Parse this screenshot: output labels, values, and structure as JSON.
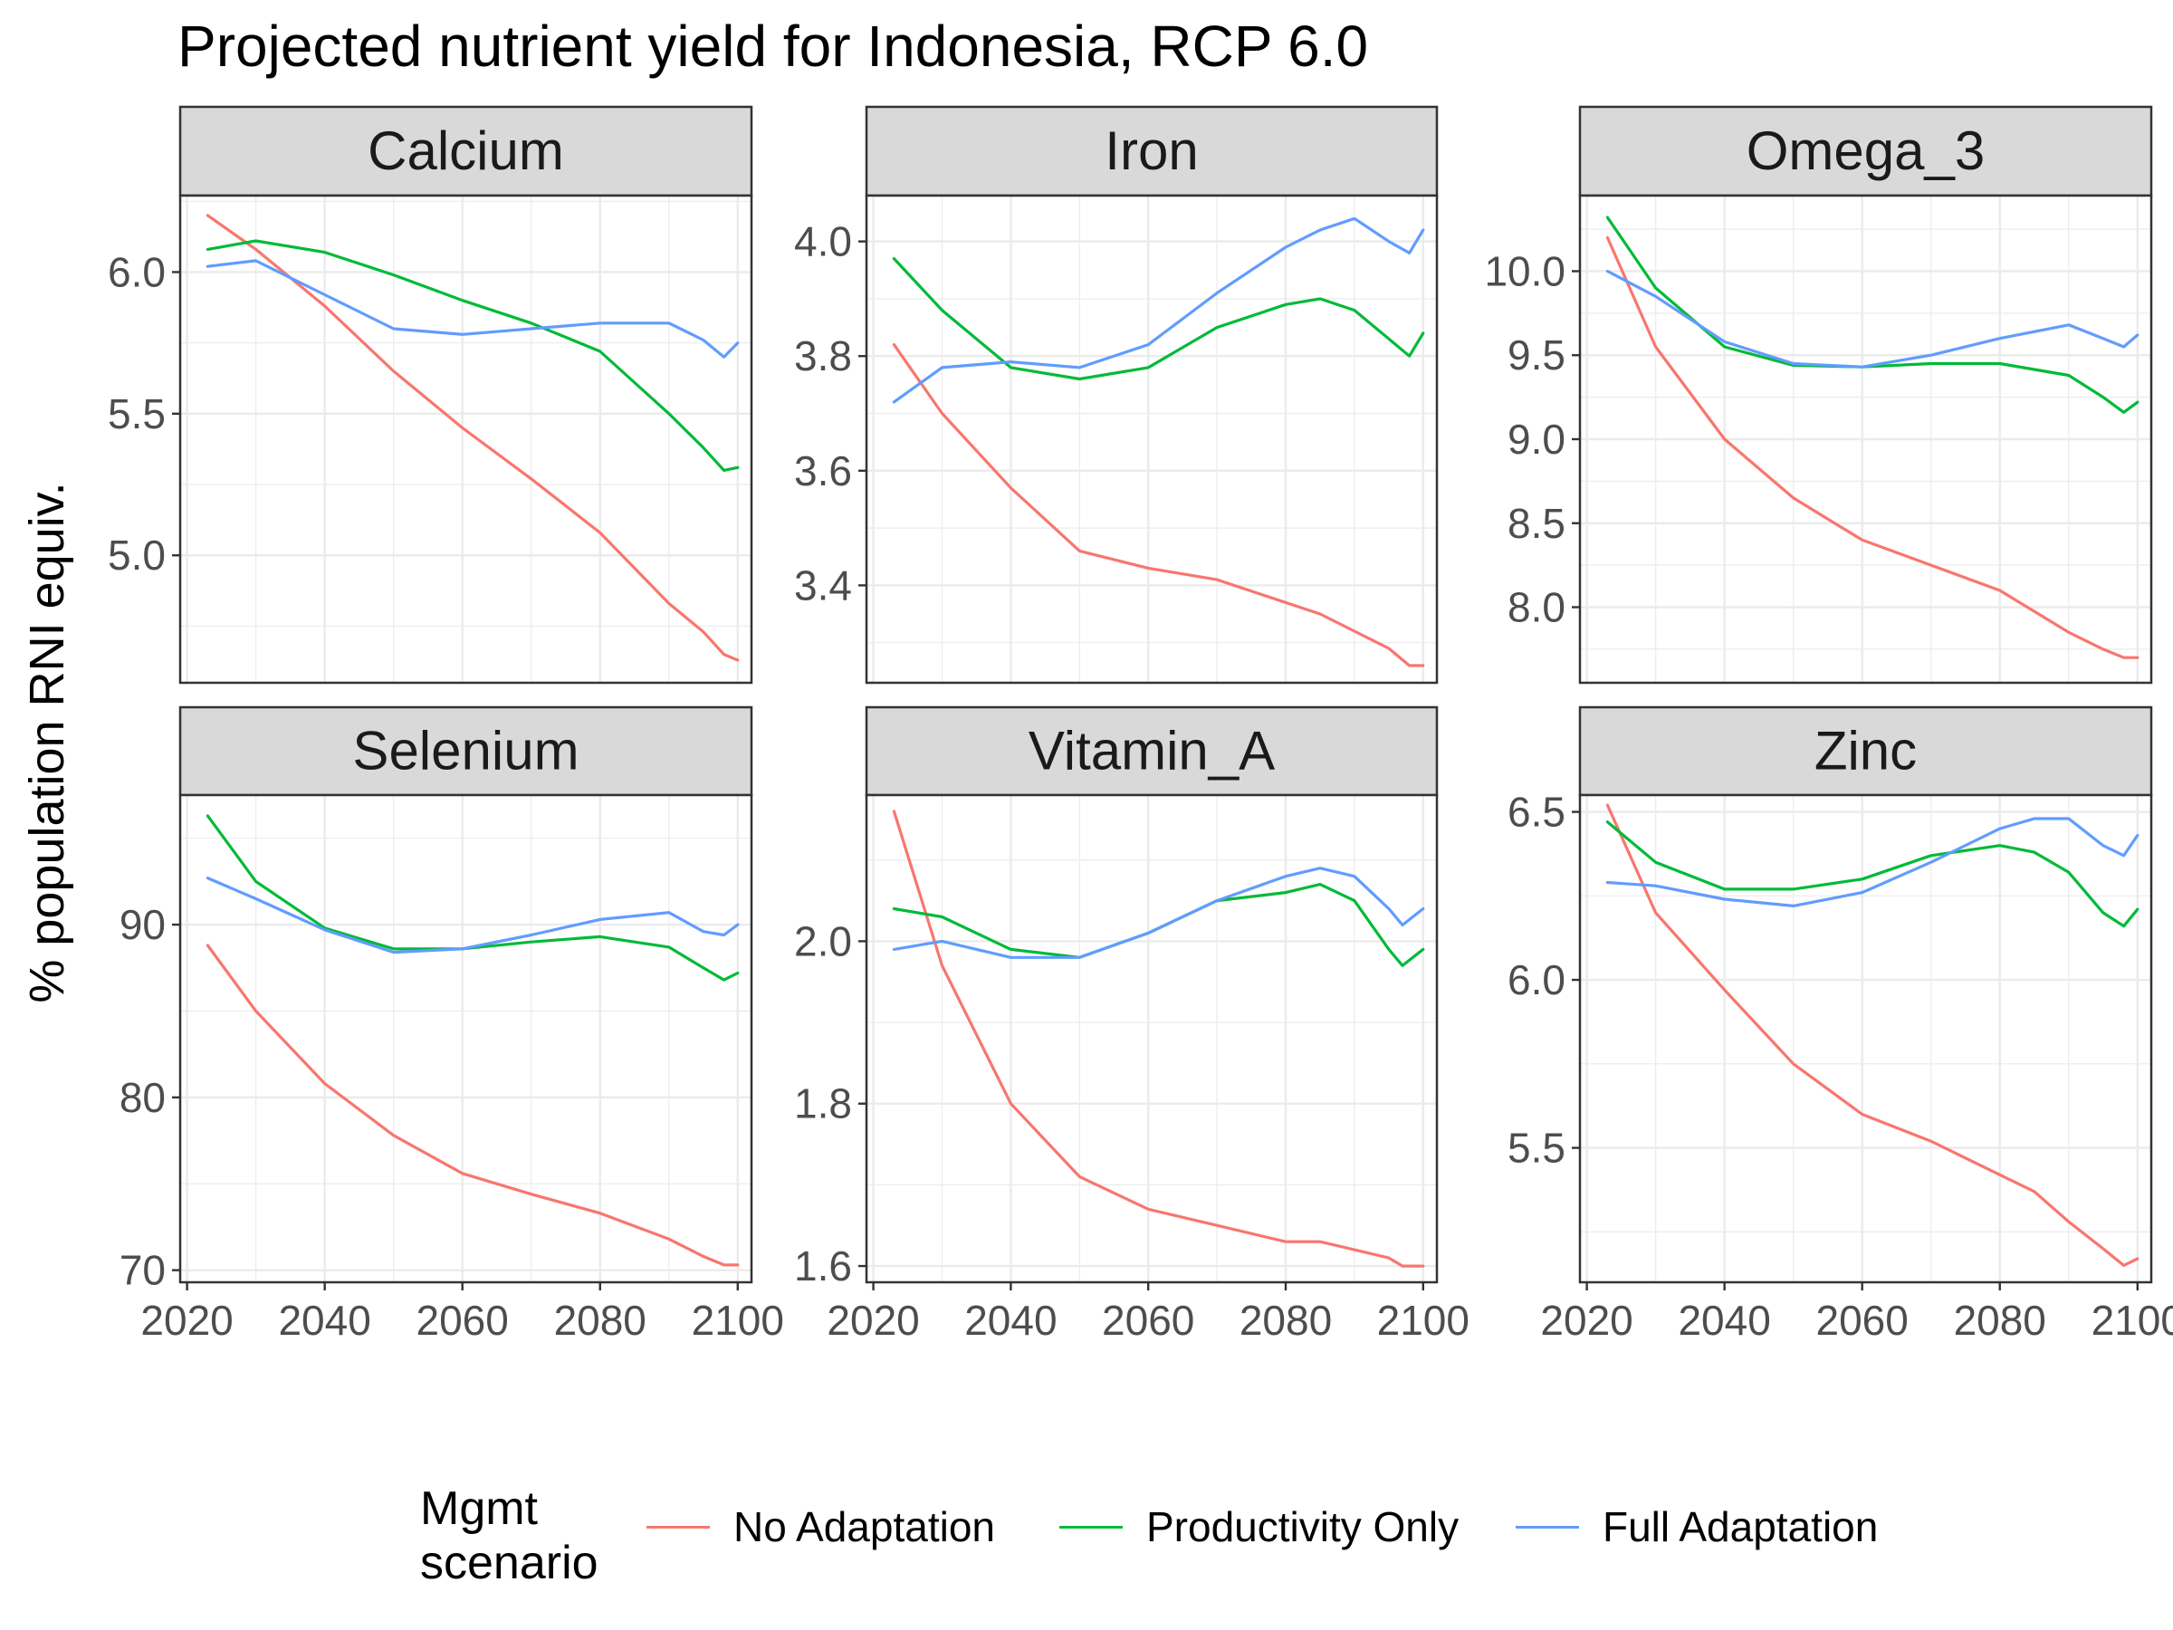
{
  "chart_data": {
    "type": "line",
    "title": "Projected nutrient yield for Indonesia, RCP 6.0",
    "xlabel": "",
    "ylabel": "% population RNI equiv.",
    "grid": true,
    "legend": {
      "title": "Mgmt\nscenario",
      "placement": "bottom"
    },
    "series_styles": [
      {
        "name": "No Adaptation",
        "color": "#F8766D"
      },
      {
        "name": "Productivity Only",
        "color": "#00BA38"
      },
      {
        "name": "Full Adaptation",
        "color": "#619CFF"
      }
    ],
    "x_ticks": [
      2020,
      2040,
      2060,
      2080,
      2100
    ],
    "xlim": [
      2019,
      2102
    ],
    "panels": [
      {
        "title": "Calcium",
        "ylim": [
          4.55,
          6.27
        ],
        "y_ticks": [
          5.0,
          5.5,
          6.0
        ],
        "x": [
          2023,
          2030,
          2040,
          2050,
          2060,
          2070,
          2080,
          2090,
          2095,
          2098,
          2100
        ],
        "series": [
          {
            "name": "No Adaptation",
            "values": [
              6.2,
              6.08,
              5.88,
              5.65,
              5.45,
              5.27,
              5.08,
              4.83,
              4.73,
              4.65,
              4.63
            ]
          },
          {
            "name": "Productivity Only",
            "values": [
              6.08,
              6.11,
              6.07,
              5.99,
              5.9,
              5.82,
              5.72,
              5.5,
              5.38,
              5.3,
              5.31
            ]
          },
          {
            "name": "Full Adaptation",
            "values": [
              6.02,
              6.04,
              5.92,
              5.8,
              5.78,
              5.8,
              5.82,
              5.82,
              5.76,
              5.7,
              5.75
            ]
          }
        ]
      },
      {
        "title": "Iron",
        "ylim": [
          3.23,
          4.08
        ],
        "y_ticks": [
          3.4,
          3.6,
          3.8,
          4.0
        ],
        "x": [
          2023,
          2030,
          2040,
          2050,
          2060,
          2070,
          2080,
          2085,
          2090,
          2095,
          2098,
          2100
        ],
        "series": [
          {
            "name": "No Adaptation",
            "values": [
              3.82,
              3.7,
              3.57,
              3.46,
              3.43,
              3.41,
              3.37,
              3.35,
              3.32,
              3.29,
              3.26,
              3.26
            ]
          },
          {
            "name": "Productivity Only",
            "values": [
              3.97,
              3.88,
              3.78,
              3.76,
              3.78,
              3.85,
              3.89,
              3.9,
              3.88,
              3.83,
              3.8,
              3.84
            ]
          },
          {
            "name": "Full Adaptation",
            "values": [
              3.72,
              3.78,
              3.79,
              3.78,
              3.82,
              3.91,
              3.99,
              4.02,
              4.04,
              4.0,
              3.98,
              4.02
            ]
          }
        ]
      },
      {
        "title": "Omega_3",
        "ylim": [
          7.55,
          10.45
        ],
        "y_ticks": [
          8.0,
          8.5,
          9.0,
          9.5,
          10.0
        ],
        "x": [
          2023,
          2030,
          2040,
          2050,
          2060,
          2070,
          2080,
          2090,
          2095,
          2098,
          2100
        ],
        "series": [
          {
            "name": "No Adaptation",
            "values": [
              10.2,
              9.55,
              9.0,
              8.65,
              8.4,
              8.25,
              8.1,
              7.85,
              7.75,
              7.7,
              7.7
            ]
          },
          {
            "name": "Productivity Only",
            "values": [
              10.32,
              9.9,
              9.55,
              9.44,
              9.43,
              9.45,
              9.45,
              9.38,
              9.25,
              9.16,
              9.22
            ]
          },
          {
            "name": "Full Adaptation",
            "values": [
              10.0,
              9.85,
              9.58,
              9.45,
              9.43,
              9.5,
              9.6,
              9.68,
              9.6,
              9.55,
              9.62
            ]
          }
        ]
      },
      {
        "title": "Selenium",
        "ylim": [
          69.3,
          97.5
        ],
        "y_ticks": [
          70,
          80,
          90
        ],
        "x": [
          2023,
          2030,
          2040,
          2050,
          2060,
          2070,
          2080,
          2090,
          2095,
          2098,
          2100
        ],
        "series": [
          {
            "name": "No Adaptation",
            "values": [
              88.8,
              85.0,
              80.8,
              77.8,
              75.6,
              74.4,
              73.3,
              71.8,
              70.8,
              70.3,
              70.3
            ]
          },
          {
            "name": "Productivity Only",
            "values": [
              96.3,
              92.5,
              89.8,
              88.6,
              88.6,
              89.0,
              89.3,
              88.7,
              87.5,
              86.8,
              87.2
            ]
          },
          {
            "name": "Full Adaptation",
            "values": [
              92.7,
              91.5,
              89.7,
              88.4,
              88.6,
              89.4,
              90.3,
              90.7,
              89.6,
              89.4,
              90.0
            ]
          }
        ]
      },
      {
        "title": "Vitamin_A",
        "ylim": [
          1.58,
          2.18
        ],
        "y_ticks": [
          1.6,
          1.8,
          2.0
        ],
        "x": [
          2023,
          2030,
          2040,
          2050,
          2060,
          2070,
          2080,
          2085,
          2090,
          2095,
          2097,
          2100
        ],
        "series": [
          {
            "name": "No Adaptation",
            "values": [
              2.16,
              1.97,
              1.8,
              1.71,
              1.67,
              1.65,
              1.63,
              1.63,
              1.62,
              1.61,
              1.6,
              1.6
            ]
          },
          {
            "name": "Productivity Only",
            "values": [
              2.04,
              2.03,
              1.99,
              1.98,
              2.01,
              2.05,
              2.06,
              2.07,
              2.05,
              1.99,
              1.97,
              1.99
            ]
          },
          {
            "name": "Full Adaptation",
            "values": [
              1.99,
              2.0,
              1.98,
              1.98,
              2.01,
              2.05,
              2.08,
              2.09,
              2.08,
              2.04,
              2.02,
              2.04
            ]
          }
        ]
      },
      {
        "title": "Zinc",
        "ylim": [
          5.1,
          6.55
        ],
        "y_ticks": [
          5.5,
          6.0,
          6.5
        ],
        "x": [
          2023,
          2030,
          2040,
          2050,
          2060,
          2070,
          2080,
          2085,
          2090,
          2095,
          2098,
          2100
        ],
        "series": [
          {
            "name": "No Adaptation",
            "values": [
              6.52,
              6.2,
              5.97,
              5.75,
              5.6,
              5.52,
              5.42,
              5.37,
              5.28,
              5.2,
              5.15,
              5.17
            ]
          },
          {
            "name": "Productivity Only",
            "values": [
              6.47,
              6.35,
              6.27,
              6.27,
              6.3,
              6.37,
              6.4,
              6.38,
              6.32,
              6.2,
              6.16,
              6.21
            ]
          },
          {
            "name": "Full Adaptation",
            "values": [
              6.29,
              6.28,
              6.24,
              6.22,
              6.26,
              6.35,
              6.45,
              6.48,
              6.48,
              6.4,
              6.37,
              6.43
            ]
          }
        ]
      }
    ]
  }
}
